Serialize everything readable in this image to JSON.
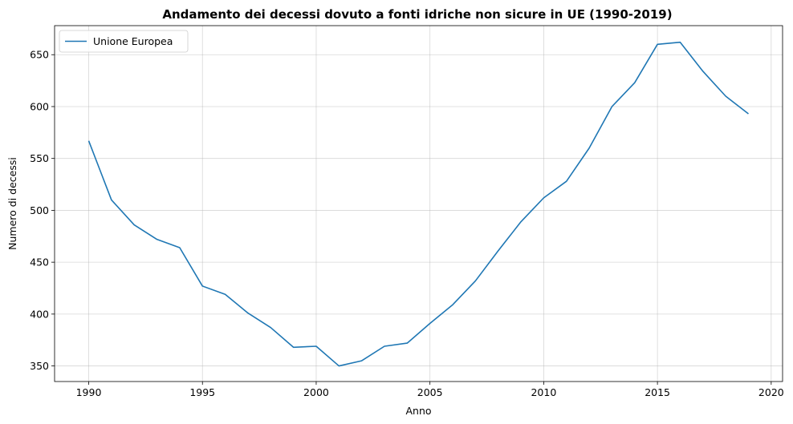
{
  "chart_data": {
    "type": "line",
    "title": "Andamento dei decessi dovuto a fonti idriche non sicure in UE (1990-2019)",
    "xlabel": "Anno",
    "ylabel": "Numero di decessi",
    "xlim": [
      1988.5,
      2020.5
    ],
    "ylim": [
      335,
      678
    ],
    "xticks": [
      1990,
      1995,
      2000,
      2005,
      2010,
      2015,
      2020
    ],
    "yticks": [
      350,
      400,
      450,
      500,
      550,
      600,
      650
    ],
    "grid": true,
    "legend_position": "top-left",
    "series": [
      {
        "name": "Unione Europea",
        "color": "#1f77b4",
        "x": [
          1990,
          1991,
          1992,
          1993,
          1994,
          1995,
          1996,
          1997,
          1998,
          1999,
          2000,
          2001,
          2002,
          2003,
          2004,
          2005,
          2006,
          2007,
          2008,
          2009,
          2010,
          2011,
          2012,
          2013,
          2014,
          2015,
          2016,
          2017,
          2018,
          2019
        ],
        "y": [
          567,
          510,
          486,
          472,
          464,
          427,
          419,
          401,
          387,
          368,
          369,
          350,
          355,
          369,
          372,
          391,
          409,
          432,
          461,
          489,
          512,
          528,
          560,
          600,
          623,
          660,
          662,
          634,
          610,
          593
        ]
      }
    ]
  }
}
